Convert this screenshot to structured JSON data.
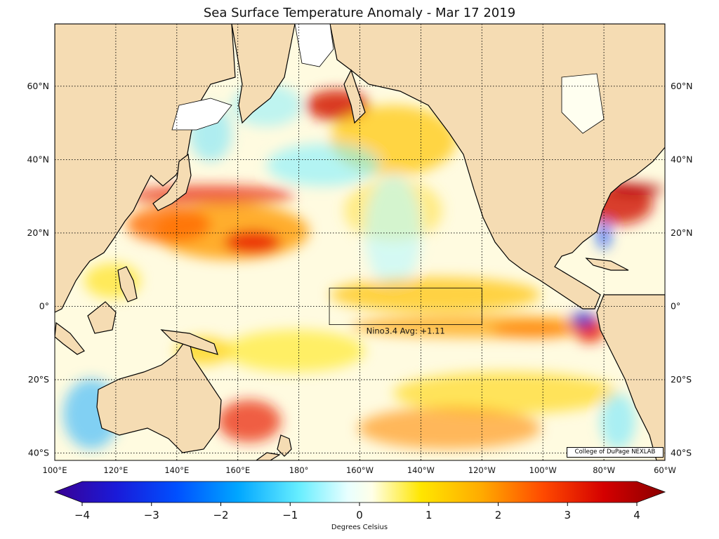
{
  "title": "Sea Surface Temperature Anomaly - Mar 17 2019",
  "credit": "College of DuPage NEXLAB",
  "annotation": "Nino3.4 Avg: +1.11",
  "colorbar": {
    "label": "Degrees Celsius",
    "min": -4,
    "max": 4,
    "ticks": [
      "−4",
      "−3",
      "−2",
      "−1",
      "0",
      "1",
      "2",
      "3",
      "4"
    ]
  },
  "map": {
    "lon_range": [
      100,
      300
    ],
    "lat_range": [
      -42,
      77
    ],
    "lat_ticks": [
      {
        "lat": 60,
        "label": "60°N"
      },
      {
        "lat": 40,
        "label": "40°N"
      },
      {
        "lat": 20,
        "label": "20°N"
      },
      {
        "lat": 0,
        "label": "0°"
      },
      {
        "lat": -20,
        "label": "20°S"
      },
      {
        "lat": -40,
        "label": "40°S"
      }
    ],
    "lon_ticks": [
      {
        "lon": 100,
        "label": "100°E"
      },
      {
        "lon": 120,
        "label": "120°E"
      },
      {
        "lon": 140,
        "label": "140°E"
      },
      {
        "lon": 160,
        "label": "160°E"
      },
      {
        "lon": 180,
        "label": "180°"
      },
      {
        "lon": 200,
        "label": "160°W"
      },
      {
        "lon": 220,
        "label": "140°W"
      },
      {
        "lon": 240,
        "label": "120°W"
      },
      {
        "lon": 260,
        "label": "100°W"
      },
      {
        "lon": 280,
        "label": "80°W"
      },
      {
        "lon": 300,
        "label": "60°W"
      }
    ],
    "nino34_box": {
      "lon_min": 190,
      "lon_max": 240,
      "lat_min": -5,
      "lat_max": 5
    },
    "land_color": "#f5dcb3",
    "ocean_base_color": "#fffbe0"
  }
}
